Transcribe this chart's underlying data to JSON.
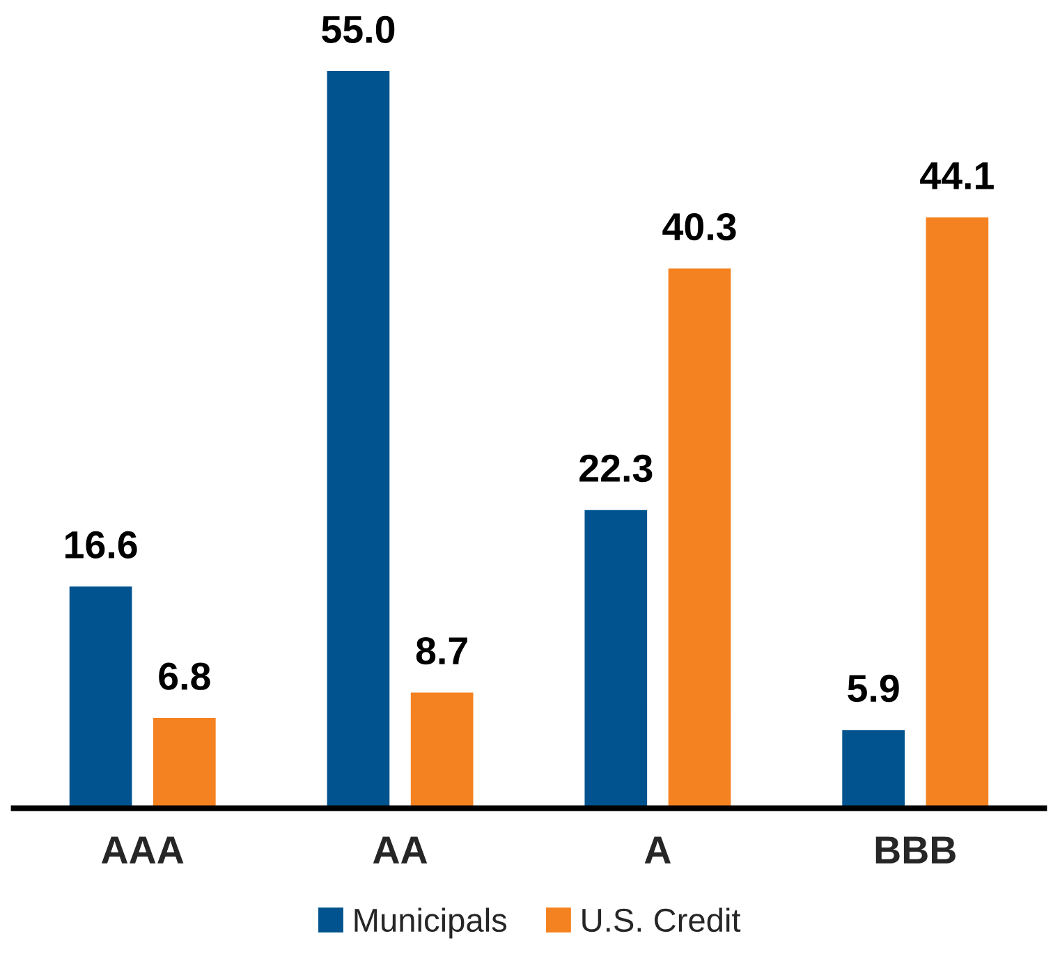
{
  "chart_data": {
    "type": "bar",
    "categories": [
      "AAA",
      "AA",
      "A",
      "BBB"
    ],
    "series": [
      {
        "name": "Municipals",
        "color": "#00538f",
        "values": [
          16.6,
          55.0,
          22.3,
          5.9
        ],
        "value_labels": [
          "16.6",
          "55.0",
          "22.3",
          "5.9"
        ]
      },
      {
        "name": "U.S. Credit",
        "color": "#f58220",
        "values": [
          6.8,
          8.7,
          40.3,
          44.1
        ],
        "value_labels": [
          "6.8",
          "8.7",
          "40.3",
          "44.1"
        ]
      }
    ],
    "legend": "bottom",
    "grid": false
  }
}
